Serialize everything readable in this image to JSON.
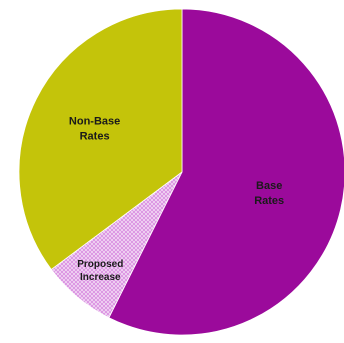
{
  "chart_data": {
    "type": "pie",
    "title": "",
    "slices": [
      {
        "label_lines": [
          "Base",
          "Rates"
        ],
        "value": 57.4,
        "color": "#9b0a9b",
        "pattern": "solid"
      },
      {
        "label_lines": [
          "Proposed",
          "Increase"
        ],
        "value": 7.4,
        "color": "#d98ee0",
        "pattern": "crosshatch"
      },
      {
        "label_lines": [
          "Non-Base",
          "Rates"
        ],
        "value": 35.2,
        "color": "#c4c40a",
        "pattern": "solid"
      }
    ],
    "legend": "none"
  }
}
